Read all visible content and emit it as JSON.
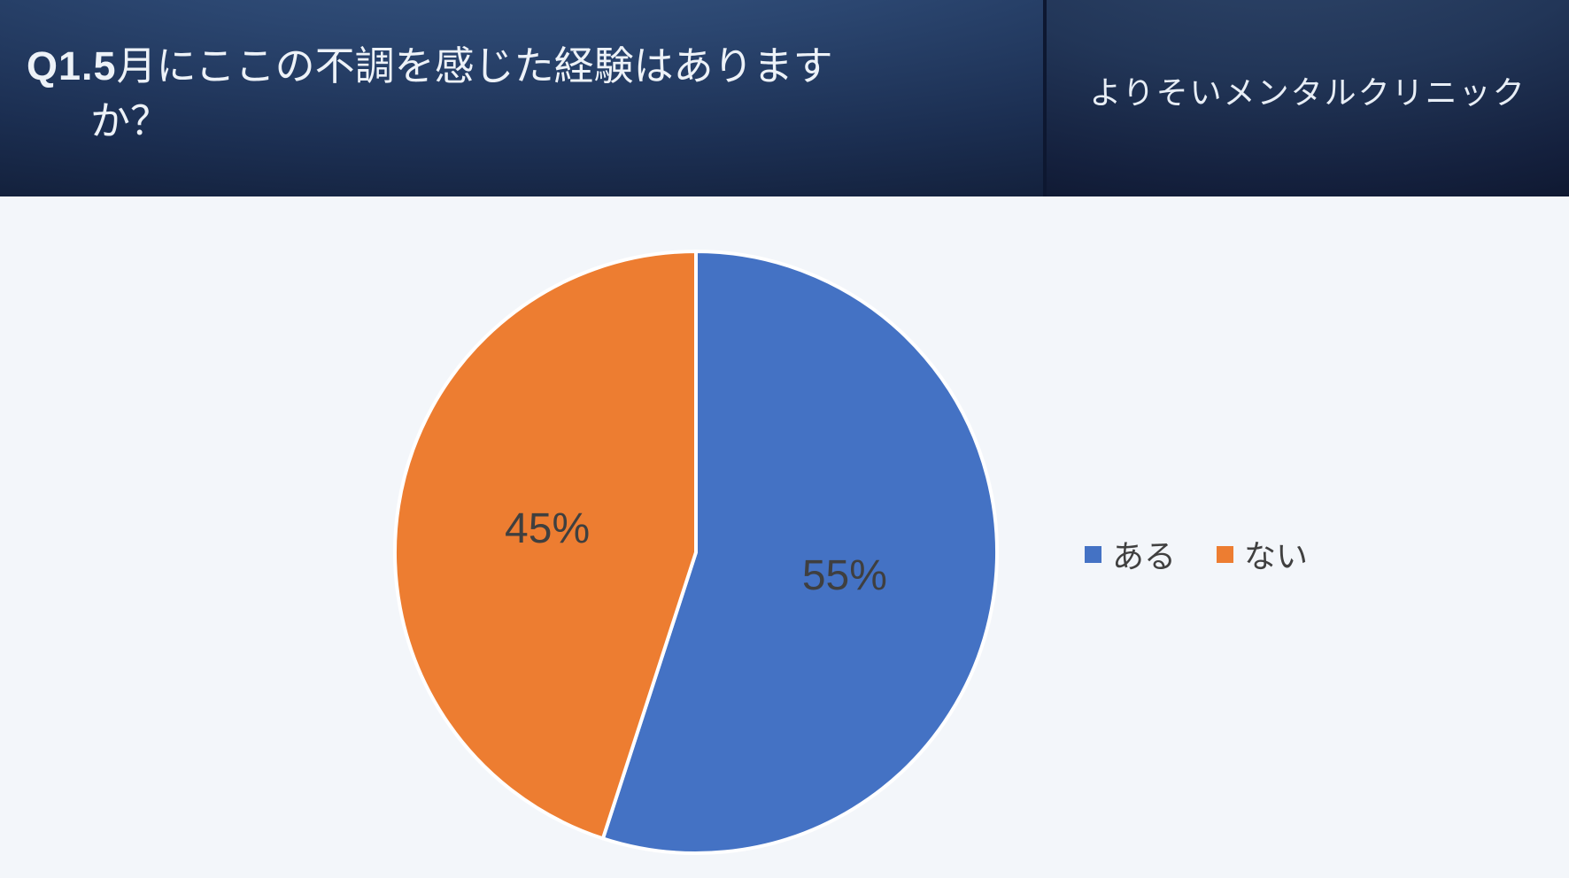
{
  "slide": {
    "background_color": "#F3F6FA"
  },
  "header": {
    "question": {
      "prefix": "Q1.5",
      "line1": "月にここの不調を感じた経験はあります",
      "line2": "か？",
      "full_text": "Q1.5月にここの不調を感じた経験はありますか？"
    },
    "brand": "よりそいメンタルクリニック",
    "colors": {
      "left_panel_top": "#3A5A86",
      "left_panel_bottom": "#101B33",
      "right_panel_top": "#30486D",
      "right_panel_bottom": "#0C142A",
      "divider": "#0D1730",
      "text": "#EDF2F8"
    }
  },
  "chart_data": {
    "type": "pie",
    "title": "Q1.5月にここの不調を感じた経験はありますか？",
    "categories": [
      "ある",
      "ない"
    ],
    "values": [
      55,
      45
    ],
    "unit": "%",
    "data_labels": [
      "55%",
      "45%"
    ],
    "colors": [
      "#4472C4",
      "#ED7D31"
    ],
    "slice_border_color": "#FFFFFF",
    "label_color": "#3F3F3F",
    "start_angle_deg": 0,
    "direction": "clockwise",
    "legend_position": "right"
  }
}
